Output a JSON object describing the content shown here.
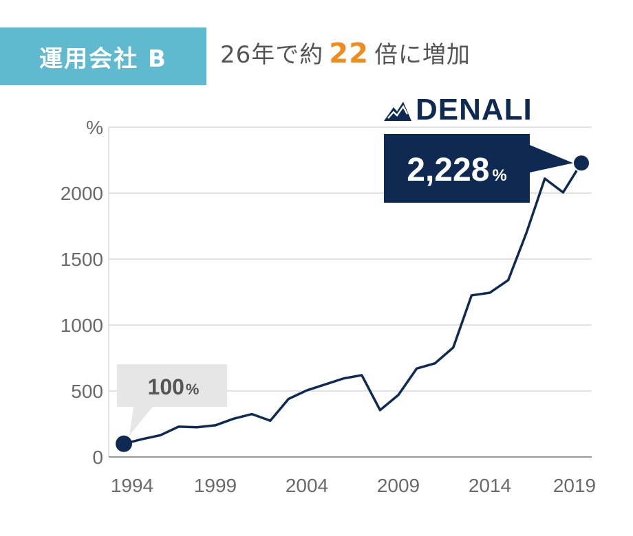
{
  "header": {
    "badge": "運用会社 B",
    "summary_prefix": "26年で約",
    "multiplier": "22",
    "summary_suffix": "倍に増加",
    "brand_name": "DENALI",
    "brand_icon": "mountain-logo-icon"
  },
  "colors": {
    "badge_bg": "#5fb9cf",
    "accent": "#f08c1e",
    "series": "#0e2a52",
    "grid": "#d9d9d9",
    "start_callout_bg": "#e6e6e6"
  },
  "callouts": {
    "start": {
      "value": "100",
      "unit": "%"
    },
    "end": {
      "value": "2,228",
      "unit": "%"
    }
  },
  "chart_data": {
    "type": "line",
    "ylabel": "%",
    "ylim": [
      0,
      2500
    ],
    "yticks": [
      0,
      500,
      1000,
      1500,
      2000
    ],
    "xlim": [
      1994,
      2019
    ],
    "xticks": [
      1994,
      1999,
      2004,
      2009,
      2014,
      2019
    ],
    "grid": true,
    "series": [
      {
        "x": [
          1994,
          1995,
          1996,
          1997,
          1998,
          1999,
          2000,
          2001,
          2002,
          2003,
          2004,
          2005,
          2006,
          2007,
          2008,
          2009,
          2010,
          2011,
          2012,
          2013,
          2014,
          2015,
          2016,
          2017,
          2018,
          2019
        ],
        "values": [
          100,
          135,
          165,
          230,
          225,
          240,
          290,
          325,
          275,
          440,
          505,
          550,
          595,
          620,
          355,
          470,
          670,
          710,
          830,
          1225,
          1245,
          1340,
          1700,
          2110,
          2005,
          2228
        ]
      }
    ]
  }
}
